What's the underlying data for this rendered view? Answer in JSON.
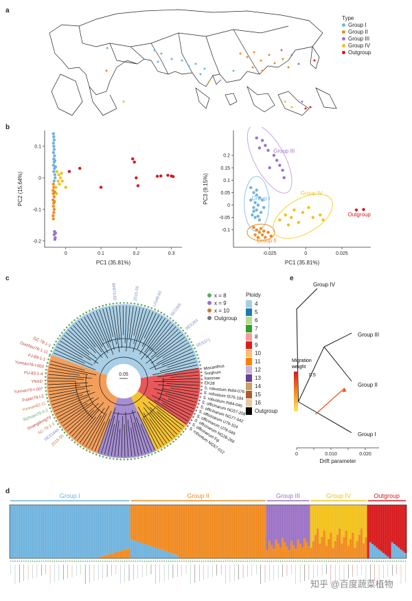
{
  "panels": {
    "a": "a",
    "b": "b",
    "c": "c",
    "d": "d",
    "e": "e"
  },
  "colors": {
    "group1": "#6fb3de",
    "group2": "#f08a1f",
    "group3": "#9b72c6",
    "group4": "#f2c11a",
    "outgroup": "#d7191c"
  },
  "map_legend": {
    "title": "Type",
    "items": [
      {
        "label": "Group I",
        "color": "#6fb3de"
      },
      {
        "label": "Group II",
        "color": "#f08a1f"
      },
      {
        "label": "Group III",
        "color": "#9b72c6"
      },
      {
        "label": "Group IV",
        "color": "#f2c11a"
      },
      {
        "label": "Outgroup",
        "color": "#d7191c"
      }
    ]
  },
  "chart_data": [
    {
      "type": "scatter",
      "title": "",
      "xlabel": "PC1 (35.81%)",
      "ylabel": "PC2 (15.64%)",
      "xlim": [
        -0.06,
        0.33
      ],
      "ylim": [
        -0.22,
        0.15
      ],
      "xticks": [
        "0",
        "0.1",
        "0.2",
        "0.3"
      ],
      "xtick_values": [
        0,
        0.1,
        0.2,
        0.3
      ],
      "yticks": [
        "0.1",
        "0",
        "-0.1",
        "-0.2"
      ],
      "ytick_values": [
        0.1,
        0,
        -0.1,
        -0.2
      ],
      "series": [
        {
          "name": "Group I",
          "color": "#6fb3de",
          "points": [
            [
              -0.035,
              0.14
            ],
            [
              -0.034,
              0.13
            ],
            [
              -0.033,
              0.12
            ],
            [
              -0.035,
              0.11
            ],
            [
              -0.034,
              0.1
            ],
            [
              -0.033,
              0.09
            ],
            [
              -0.035,
              0.08
            ],
            [
              -0.032,
              0.07
            ],
            [
              -0.034,
              0.06
            ],
            [
              -0.033,
              0.05
            ],
            [
              -0.035,
              0.04
            ],
            [
              -0.032,
              0.03
            ],
            [
              -0.034,
              0.02
            ],
            [
              -0.031,
              0.01
            ],
            [
              -0.03,
              0.0
            ],
            [
              -0.033,
              -0.01
            ],
            [
              -0.029,
              0.035
            ],
            [
              -0.031,
              0.055
            ]
          ]
        },
        {
          "name": "Group II",
          "color": "#f08a1f",
          "points": [
            [
              -0.035,
              -0.02
            ],
            [
              -0.034,
              -0.03
            ],
            [
              -0.036,
              -0.04
            ],
            [
              -0.035,
              -0.05
            ],
            [
              -0.033,
              -0.06
            ],
            [
              -0.036,
              -0.07
            ],
            [
              -0.034,
              -0.08
            ],
            [
              -0.035,
              -0.09
            ],
            [
              -0.033,
              -0.1
            ],
            [
              -0.034,
              -0.11
            ],
            [
              -0.036,
              -0.12
            ],
            [
              -0.035,
              -0.13
            ],
            [
              -0.032,
              -0.075
            ],
            [
              -0.031,
              -0.045
            ]
          ]
        },
        {
          "name": "Group III",
          "color": "#9b72c6",
          "points": [
            [
              -0.032,
              -0.17
            ],
            [
              -0.033,
              -0.18
            ],
            [
              -0.03,
              -0.19
            ],
            [
              -0.031,
              -0.195
            ],
            [
              -0.029,
              -0.175
            ]
          ]
        },
        {
          "name": "Group IV",
          "color": "#f2c11a",
          "points": [
            [
              -0.025,
              0.02
            ],
            [
              -0.02,
              0.01
            ],
            [
              -0.015,
              0.0
            ],
            [
              -0.022,
              -0.01
            ],
            [
              -0.018,
              -0.02
            ],
            [
              -0.012,
              0.015
            ],
            [
              -0.01,
              -0.01
            ],
            [
              -0.028,
              -0.03
            ],
            [
              -0.026,
              -0.05
            ],
            [
              0.0,
              -0.03
            ]
          ]
        },
        {
          "name": "Outgroup",
          "color": "#d7191c",
          "points": [
            [
              0.01,
              0.02
            ],
            [
              0.04,
              0.03
            ],
            [
              0.1,
              -0.03
            ],
            [
              0.19,
              0.06
            ],
            [
              0.195,
              0.05
            ],
            [
              0.2,
              0.0
            ],
            [
              0.205,
              -0.025
            ],
            [
              0.26,
              0.005
            ],
            [
              0.27,
              0.006
            ],
            [
              0.29,
              0.008
            ],
            [
              0.3,
              0.006
            ],
            [
              0.305,
              0.004
            ]
          ]
        }
      ]
    },
    {
      "type": "scatter",
      "title": "",
      "xlabel": "PC1 (35.81%)",
      "ylabel": "PC3 (9.15%)",
      "xlim": [
        -0.05,
        0.045
      ],
      "ylim": [
        -0.17,
        0.3
      ],
      "xticks": [
        "-0.025",
        "0",
        "0.025"
      ],
      "xtick_values": [
        -0.025,
        0,
        0.025
      ],
      "yticks": [
        "0.2",
        "0.15",
        "0.1",
        "0.05",
        "0",
        "-0.05",
        "-0.1"
      ],
      "ytick_values": [
        0.2,
        0.15,
        0.1,
        0.05,
        0,
        -0.05,
        -0.1
      ],
      "annotations": [
        "Group III",
        "Group I",
        "Group IV",
        "Outgroup",
        "Group II"
      ],
      "series": [
        {
          "name": "Group I",
          "color": "#6fb3de",
          "points": [
            [
              -0.038,
              0.07
            ],
            [
              -0.036,
              0.05
            ],
            [
              -0.034,
              0.04
            ],
            [
              -0.032,
              0.03
            ],
            [
              -0.038,
              0.02
            ],
            [
              -0.035,
              0.01
            ],
            [
              -0.033,
              0.0
            ],
            [
              -0.036,
              -0.01
            ],
            [
              -0.034,
              -0.02
            ],
            [
              -0.031,
              -0.03
            ],
            [
              -0.037,
              -0.04
            ],
            [
              -0.035,
              -0.05
            ],
            [
              -0.032,
              -0.06
            ],
            [
              -0.034,
              0.06
            ],
            [
              -0.03,
              0.02
            ],
            [
              -0.036,
              -0.025
            ],
            [
              -0.029,
              -0.01
            ],
            [
              -0.033,
              -0.045
            ]
          ]
        },
        {
          "name": "Group II",
          "color": "#f08a1f",
          "points": [
            [
              -0.036,
              -0.09
            ],
            [
              -0.034,
              -0.1
            ],
            [
              -0.032,
              -0.11
            ],
            [
              -0.03,
              -0.12
            ],
            [
              -0.028,
              -0.13
            ],
            [
              -0.035,
              -0.12
            ],
            [
              -0.031,
              -0.095
            ],
            [
              -0.026,
              -0.11
            ],
            [
              -0.024,
              -0.125
            ],
            [
              -0.033,
              -0.13
            ],
            [
              -0.029,
              -0.105
            ]
          ]
        },
        {
          "name": "Group III",
          "color": "#9b72c6",
          "points": [
            [
              -0.034,
              0.27
            ],
            [
              -0.03,
              0.26
            ],
            [
              -0.028,
              0.24
            ],
            [
              -0.026,
              0.22
            ],
            [
              -0.022,
              0.2
            ],
            [
              -0.02,
              0.18
            ],
            [
              -0.018,
              0.16
            ],
            [
              -0.016,
              0.14
            ],
            [
              -0.015,
              0.11
            ],
            [
              -0.025,
              0.15
            ],
            [
              -0.032,
              0.23
            ]
          ]
        },
        {
          "name": "Group IV",
          "color": "#f2c11a",
          "points": [
            [
              -0.018,
              -0.06
            ],
            [
              -0.014,
              -0.04
            ],
            [
              -0.01,
              -0.05
            ],
            [
              -0.008,
              -0.02
            ],
            [
              -0.005,
              -0.07
            ],
            [
              -0.002,
              -0.03
            ],
            [
              0.002,
              -0.01
            ],
            [
              0.005,
              -0.05
            ],
            [
              0.01,
              -0.04
            ],
            [
              0.012,
              -0.06
            ],
            [
              -0.012,
              -0.08
            ]
          ]
        },
        {
          "name": "Outgroup",
          "color": "#d7191c",
          "points": [
            [
              0.035,
              -0.02
            ],
            [
              0.04,
              -0.018
            ]
          ]
        }
      ]
    },
    {
      "type": "line",
      "title": "",
      "xlabel": "Drift parameter",
      "xticks": [
        "0",
        "0.010",
        "0.020"
      ],
      "xtick_values": [
        0,
        0.01,
        0.02
      ],
      "labels": [
        "Group IV",
        "Group III",
        "Group II",
        "Group I"
      ],
      "legend_title_1": "Migration",
      "legend_title_2": "weight",
      "legend_max": "0.5"
    },
    {
      "type": "bar",
      "title": "",
      "groups": [
        "Group I",
        "Group II",
        "Group III",
        "Group IV",
        "Outgroup"
      ],
      "group_colors": [
        "#6fb3de",
        "#f08a1f",
        "#9b72c6",
        "#f2c11a",
        "#d7191c"
      ],
      "group_sizes": [
        55,
        62,
        20,
        26,
        18
      ]
    }
  ],
  "tree": {
    "scale_label": "0.05",
    "legend_x": [
      {
        "label": "x = 8",
        "color": "#5fa85f"
      },
      {
        "label": "x = 9",
        "color": "#9b72c6"
      },
      {
        "label": "x = 10",
        "color": "#d07a2b"
      },
      {
        "label": "Outgroup",
        "color": "#777777"
      }
    ],
    "ploidy_title": "Ploidy",
    "ploidy": [
      {
        "label": "4",
        "color": "#a6cee3"
      },
      {
        "label": "5",
        "color": "#1f78b4"
      },
      {
        "label": "6",
        "color": "#b2df8a"
      },
      {
        "label": "7",
        "color": "#33a02c"
      },
      {
        "label": "8",
        "color": "#fb9a99"
      },
      {
        "label": "9",
        "color": "#e31a1c"
      },
      {
        "label": "10",
        "color": "#fdbf6f"
      },
      {
        "label": "11",
        "color": "#ff7f00"
      },
      {
        "label": "12",
        "color": "#cab2d6"
      },
      {
        "label": "13",
        "color": "#6a3d9a"
      },
      {
        "label": "14",
        "color": "#c8a060"
      },
      {
        "label": "15",
        "color": "#b15928"
      },
      {
        "label": "16",
        "color": "#e7c9a0"
      },
      {
        "label": "Outgroup",
        "color": "#000000"
      }
    ],
    "right_labels": [
      "Miscanthus",
      "Sorghum",
      "kassoae",
      "EK28",
      "S. robustum IN84-076",
      "S. robustum IS76-184",
      "S. robustum IN84-045",
      "S. officinarum NG57-208",
      "S. officinarum NG77-042",
      "S. officinarum U76-324",
      "S. officinarum IJ76-049",
      "S. officinarum NG28-266",
      "S. officinarum Fiji",
      "S. robustum NG57-012"
    ],
    "left_labels": [
      "GZ-78-1-1",
      "Guizhou78-1-11",
      "FJ-89-1-1",
      "Yunnan76-I-003",
      "FU-83-1-4",
      "YNXD",
      "Yunnan76-I-007",
      "Fujian79-I-2",
      "Yunnan82-11",
      "Sichuan79-II-2",
      "Guangdong70",
      "SC-79-1-1",
      "SES1846",
      "2015-55"
    ],
    "top_labels": [
      "SES184B",
      "2015-56",
      "US48-60",
      "SES305",
      "SES264",
      "SES371"
    ]
  },
  "watermark": "知乎 @百度蔬菜植物"
}
